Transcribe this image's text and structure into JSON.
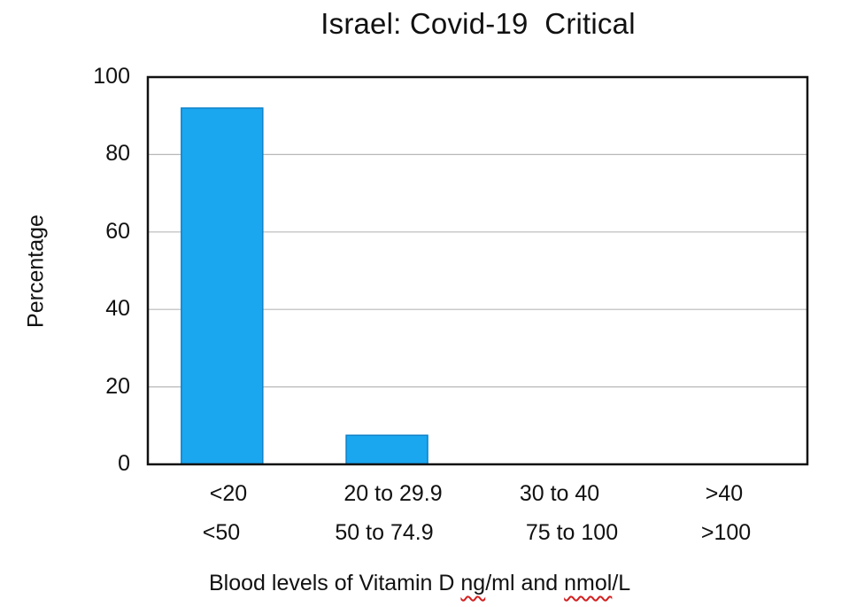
{
  "chart_data": {
    "type": "bar",
    "title": "Israel: Covid-19  Critical",
    "ylabel": "Percentage",
    "xlabel_parts": [
      "Blood levels of Vitamin D ",
      "ng",
      "/ml and ",
      "nmol",
      "/L"
    ],
    "categories": [
      {
        "line1": "<20",
        "line2": "<50"
      },
      {
        "line1": "20 to 29.9",
        "line2": "50 to 74.9"
      },
      {
        "line1": "30 to 40",
        "line2": "75 to 100"
      },
      {
        "line1": ">40",
        "line2": ">100"
      }
    ],
    "values": [
      92,
      7.5,
      0,
      0
    ],
    "ylim": [
      0,
      100
    ],
    "yticks": [
      "0",
      "20",
      "40",
      "60",
      "80",
      "100"
    ],
    "grid": true,
    "bar_color": "#1ba6f0",
    "bar_stroke": "#0d82c8"
  }
}
